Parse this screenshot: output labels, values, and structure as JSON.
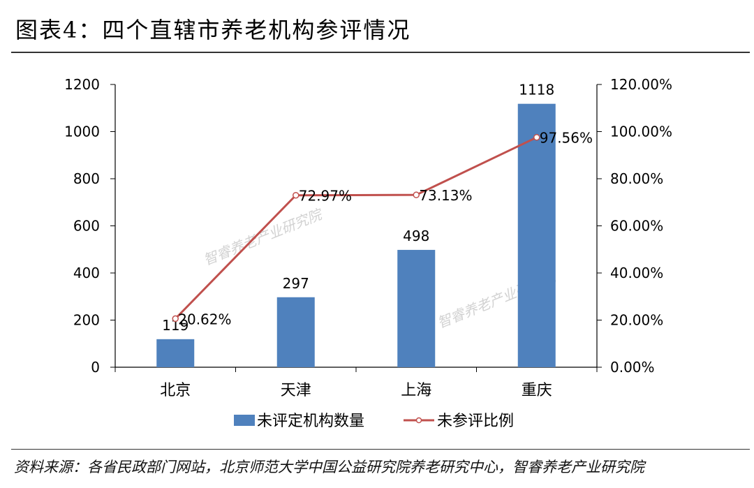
{
  "header": {
    "title": "图表4：四个直辖市养老机构参评情况"
  },
  "footer": {
    "source": "资料来源：各省民政部门网站，北京师范大学中国公益研究院养老研究中心，智睿养老产业研究院"
  },
  "watermark": "智睿养老产业研究院",
  "chart_data": {
    "type": "bar",
    "title": "四个直辖市养老机构参评情况",
    "categories": [
      "北京",
      "天津",
      "上海",
      "重庆"
    ],
    "series": [
      {
        "name": "未评定机构数量",
        "type": "bar",
        "axis": "left",
        "color": "#4F81BD",
        "values": [
          119,
          297,
          498,
          1118
        ],
        "labels": [
          "119",
          "297",
          "498",
          "1118"
        ]
      },
      {
        "name": "未参评比例",
        "type": "line",
        "axis": "right",
        "color": "#C0504D",
        "values": [
          20.62,
          72.97,
          73.13,
          97.56
        ],
        "labels": [
          "20.62%",
          "72.97%",
          "73.13%",
          "97.56%"
        ]
      }
    ],
    "y_left": {
      "min": 0,
      "max": 1200,
      "ticks": [
        "0",
        "200",
        "400",
        "600",
        "800",
        "1000",
        "1200"
      ]
    },
    "y_right": {
      "min": 0,
      "max": 120,
      "ticks": [
        "0.00%",
        "20.00%",
        "40.00%",
        "60.00%",
        "80.00%",
        "100.00%",
        "120.00%"
      ]
    },
    "legend": [
      "未评定机构数量",
      "未参评比例"
    ],
    "legend_position": "bottom"
  }
}
